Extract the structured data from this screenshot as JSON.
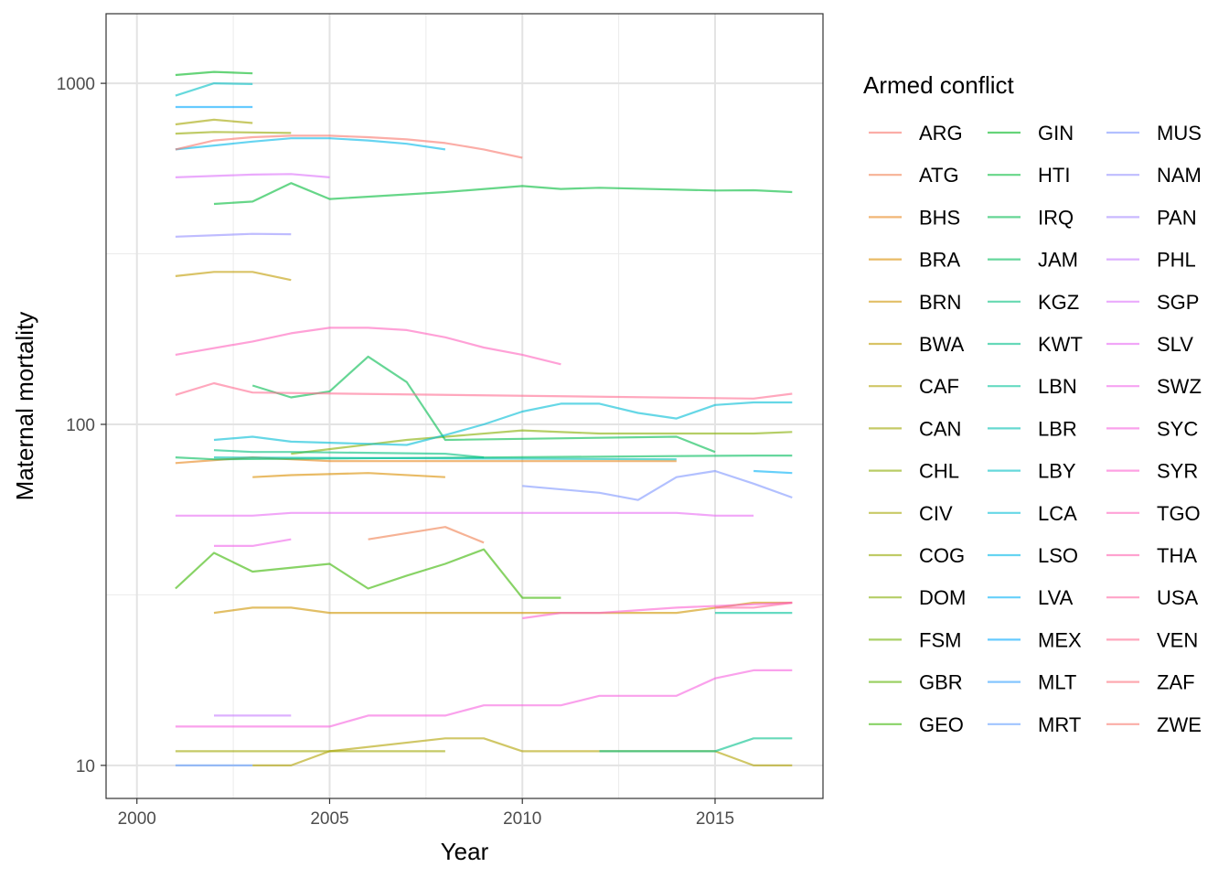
{
  "chart_data": {
    "type": "line",
    "xlabel": "Year",
    "ylabel": "Maternal mortality",
    "xlim": [
      1999.2,
      2017.8
    ],
    "ylim": [
      8,
      1600
    ],
    "y_scale": "log10",
    "x_ticks": [
      2000,
      2005,
      2010,
      2015
    ],
    "x_tick_labels": [
      "2000",
      "2005",
      "2010",
      "2015"
    ],
    "y_ticks": [
      10,
      100,
      1000
    ],
    "y_tick_labels": [
      "10",
      "100",
      "1000"
    ],
    "grid": true,
    "legend": {
      "title": "Armed conflict",
      "position": "right",
      "columns": 3
    },
    "series": [
      {
        "name": "ARG",
        "color": "#F8766D",
        "x": [],
        "y": []
      },
      {
        "name": "ATG",
        "color": "#F07E4E",
        "x": [
          2006,
          2008,
          2009
        ],
        "y": [
          46,
          50,
          45
        ]
      },
      {
        "name": "BHS",
        "color": "#E7861B",
        "x": [
          2001,
          2003,
          2005,
          2008,
          2014
        ],
        "y": [
          77,
          80,
          78,
          78,
          78
        ]
      },
      {
        "name": "BRA",
        "color": "#DB8E00",
        "x": [
          2003,
          2004,
          2006,
          2008
        ],
        "y": [
          70,
          71,
          72,
          70
        ]
      },
      {
        "name": "BRN",
        "color": "#CE9500",
        "x": [
          2002,
          2003,
          2004,
          2005,
          2013,
          2014,
          2016,
          2017
        ],
        "y": [
          28,
          29,
          29,
          28,
          28,
          28,
          30,
          30
        ]
      },
      {
        "name": "BWA",
        "color": "#C09B00",
        "x": [
          2001,
          2002,
          2003,
          2004
        ],
        "y": [
          272,
          280,
          280,
          265
        ]
      },
      {
        "name": "CAF",
        "color": "#B0A100",
        "x": [
          2003,
          2004,
          2005,
          2008,
          2009,
          2010,
          2015,
          2016,
          2017
        ],
        "y": [
          10,
          10,
          11,
          12,
          12,
          11,
          11,
          10,
          10
        ]
      },
      {
        "name": "CAN",
        "color": "#9FA600",
        "x": [
          2001,
          2008
        ],
        "y": [
          11,
          11
        ]
      },
      {
        "name": "CHL",
        "color": "#8BAB00",
        "x": [],
        "y": []
      },
      {
        "name": "CIV",
        "color": "#A3A500",
        "x": [
          2001,
          2002,
          2003
        ],
        "y": [
          758,
          782,
          765
        ]
      },
      {
        "name": "COG",
        "color": "#95A900",
        "x": [
          2001,
          2002,
          2004
        ],
        "y": [
          712,
          720,
          715
        ]
      },
      {
        "name": "DOM",
        "color": "#84AD00",
        "x": [
          2004,
          2007,
          2010,
          2012,
          2016,
          2017
        ],
        "y": [
          82,
          90,
          96,
          94,
          94,
          95
        ]
      },
      {
        "name": "FSM",
        "color": "#72B000",
        "x": [],
        "y": []
      },
      {
        "name": "GBR",
        "color": "#5BB300",
        "x": [],
        "y": []
      },
      {
        "name": "GEO",
        "color": "#39B600",
        "x": [
          2001,
          2002,
          2003,
          2005,
          2006,
          2007,
          2008,
          2009,
          2010,
          2011
        ],
        "y": [
          33,
          42,
          37,
          39,
          33,
          36,
          39,
          43,
          31,
          31
        ]
      },
      {
        "name": "GIN",
        "color": "#00B81F",
        "x": [
          2001,
          2002,
          2003
        ],
        "y": [
          1058,
          1080,
          1070
        ]
      },
      {
        "name": "HTI",
        "color": "#00BA38",
        "x": [
          2002,
          2003,
          2004,
          2005,
          2008,
          2010,
          2011,
          2012,
          2015,
          2016,
          2017
        ],
        "y": [
          443,
          450,
          510,
          458,
          480,
          500,
          490,
          494,
          485,
          486,
          480
        ]
      },
      {
        "name": "IRQ",
        "color": "#00BB4E",
        "x": [
          2003,
          2004,
          2005,
          2006,
          2007,
          2008,
          2014,
          2015
        ],
        "y": [
          130,
          120,
          125,
          158,
          133,
          90,
          92,
          83
        ]
      },
      {
        "name": "JAM",
        "color": "#00BD5C",
        "x": [
          2001,
          2002,
          2016,
          2017
        ],
        "y": [
          80,
          79,
          81,
          81
        ]
      },
      {
        "name": "KGZ",
        "color": "#00BF7D",
        "x": [
          2002,
          2003,
          2004,
          2008,
          2009
        ],
        "y": [
          84,
          83,
          83,
          82,
          80
        ]
      },
      {
        "name": "KWT",
        "color": "#00C08B",
        "x": [
          2012,
          2015,
          2016,
          2017
        ],
        "y": [
          11,
          11,
          12,
          12
        ]
      },
      {
        "name": "LBN",
        "color": "#00C19A",
        "x": [
          2015,
          2017
        ],
        "y": [
          28,
          28
        ]
      },
      {
        "name": "LBR",
        "color": "#00C0B0",
        "x": [
          2002,
          2014
        ],
        "y": [
          80,
          79
        ]
      },
      {
        "name": "LBY",
        "color": "#00BFC4",
        "x": [
          2001,
          2002,
          2003
        ],
        "y": [
          920,
          1000,
          995
        ]
      },
      {
        "name": "LCA",
        "color": "#00BCD6",
        "x": [
          2002,
          2003,
          2004,
          2007,
          2008,
          2009,
          2010,
          2011,
          2012,
          2013,
          2014,
          2015,
          2016,
          2017
        ],
        "y": [
          90,
          92,
          89,
          87,
          93,
          100,
          109,
          115,
          115,
          108,
          104,
          114,
          116,
          116
        ]
      },
      {
        "name": "LSO",
        "color": "#00B8E7",
        "x": [
          2001,
          2003,
          2004,
          2005,
          2006,
          2007,
          2008
        ],
        "y": [
          640,
          675,
          690,
          690,
          680,
          665,
          640
        ]
      },
      {
        "name": "LVA",
        "color": "#00B0F6",
        "x": [
          2016,
          2017
        ],
        "y": [
          73,
          72
        ]
      },
      {
        "name": "MEX",
        "color": "#00A9FF",
        "x": [
          2001,
          2003
        ],
        "y": [
          852,
          852
        ]
      },
      {
        "name": "MLT",
        "color": "#35A2FF",
        "x": [],
        "y": []
      },
      {
        "name": "MRT",
        "color": "#619CFF",
        "x": [
          2001,
          2003
        ],
        "y": [
          10,
          10
        ]
      },
      {
        "name": "MUS",
        "color": "#7F96FF",
        "x": [
          2010,
          2012,
          2013,
          2014,
          2015,
          2016,
          2017
        ],
        "y": [
          66,
          63,
          60,
          70,
          73,
          67,
          61
        ]
      },
      {
        "name": "NAM",
        "color": "#9590FF",
        "x": [
          2001,
          2003,
          2004
        ],
        "y": [
          355,
          362,
          361
        ]
      },
      {
        "name": "PAN",
        "color": "#A58AFF",
        "x": [],
        "y": []
      },
      {
        "name": "PHL",
        "color": "#C77CFF",
        "x": [
          2002,
          2004
        ],
        "y": [
          14,
          14
        ]
      },
      {
        "name": "SGP",
        "color": "#DC71FA",
        "x": [
          2001,
          2003,
          2004,
          2005
        ],
        "y": [
          530,
          540,
          542,
          530
        ]
      },
      {
        "name": "SLV",
        "color": "#E76BF3",
        "x": [
          2001,
          2003,
          2004,
          2014,
          2015,
          2016
        ],
        "y": [
          54,
          54,
          55,
          55,
          54,
          54
        ]
      },
      {
        "name": "SWZ",
        "color": "#F066EA",
        "x": [
          2002,
          2003,
          2004
        ],
        "y": [
          44,
          44,
          46
        ]
      },
      {
        "name": "SYC",
        "color": "#F763E0",
        "x": [
          2001,
          2005,
          2006,
          2008,
          2009,
          2011,
          2012,
          2014,
          2015,
          2016,
          2017
        ],
        "y": [
          13,
          13,
          14,
          14,
          15,
          15,
          16,
          16,
          18,
          19,
          19
        ]
      },
      {
        "name": "SYR",
        "color": "#FD61D1",
        "x": [
          2010,
          2011,
          2012,
          2014,
          2017
        ],
        "y": [
          27,
          28,
          28,
          29,
          30
        ]
      },
      {
        "name": "TGO",
        "color": "#FF62BC",
        "x": [
          2001,
          2003,
          2004,
          2005,
          2006,
          2007,
          2008,
          2009,
          2010,
          2011
        ],
        "y": [
          160,
          175,
          185,
          192,
          192,
          189,
          180,
          168,
          160,
          150
        ]
      },
      {
        "name": "THA",
        "color": "#FF64B0",
        "x": [],
        "y": []
      },
      {
        "name": "USA",
        "color": "#FF67A4",
        "x": [
          2015,
          2016,
          2017
        ],
        "y": [
          29,
          29,
          30
        ]
      },
      {
        "name": "VEN",
        "color": "#FF6C91",
        "x": [
          2001,
          2002,
          2003,
          2016,
          2017
        ],
        "y": [
          122,
          132,
          124,
          119,
          123
        ]
      },
      {
        "name": "ZAF",
        "color": "#FB727D",
        "x": [],
        "y": []
      },
      {
        "name": "ZWE",
        "color": "#F8766D",
        "x": [
          2001,
          2002,
          2003,
          2004,
          2005,
          2006,
          2007,
          2008,
          2009,
          2010
        ],
        "y": [
          640,
          680,
          695,
          702,
          702,
          695,
          685,
          668,
          640,
          605
        ]
      }
    ]
  }
}
